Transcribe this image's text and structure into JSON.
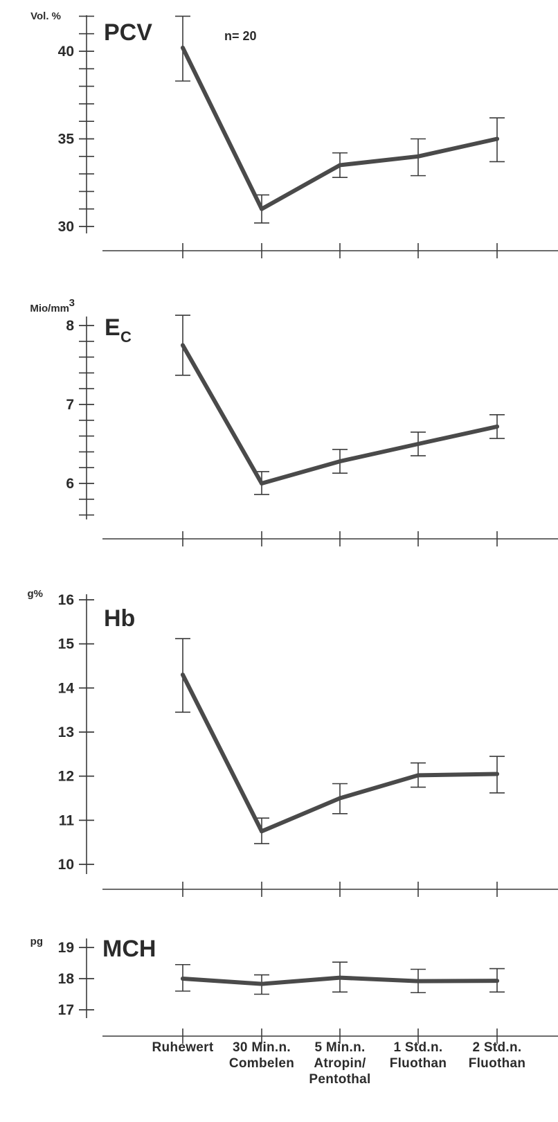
{
  "chart_data": [
    {
      "type": "line",
      "title": "PCV",
      "unit": "Vol. %",
      "annotation": "n= 20",
      "categories": [
        "Ruhewert",
        "30 Min.n. Combelen",
        "5 Min.n. Atropin/ Pentothal",
        "1 Std.n. Fluothan",
        "2 Std.n. Fluothan"
      ],
      "values": [
        40.2,
        31.0,
        33.5,
        34.0,
        35.0
      ],
      "error_low": [
        38.3,
        30.2,
        32.8,
        32.9,
        33.7
      ],
      "error_high": [
        42.0,
        31.8,
        34.2,
        35.0,
        36.2
      ],
      "yticks": [
        30,
        35,
        40
      ],
      "ytick_labels": [
        "30",
        "35",
        "40"
      ],
      "minor_step": 1,
      "ylim": [
        29.5,
        42.5
      ]
    },
    {
      "type": "line",
      "title": "E",
      "title_sub": "C",
      "unit": "Mio/mm",
      "unit_sup": "3",
      "categories": [
        "Ruhewert",
        "30 Min.n. Combelen",
        "5 Min.n. Atropin/ Pentothal",
        "1 Std.n. Fluothan",
        "2 Std.n. Fluothan"
      ],
      "values": [
        7.75,
        6.0,
        6.28,
        6.5,
        6.72
      ],
      "error_low": [
        7.37,
        5.86,
        6.13,
        6.35,
        6.57
      ],
      "error_high": [
        8.13,
        6.15,
        6.43,
        6.65,
        6.87
      ],
      "yticks": [
        6,
        7,
        8
      ],
      "ytick_labels": [
        "6",
        "7",
        "8"
      ],
      "minor_step": 0.2,
      "ylim": [
        5.4,
        8.15
      ]
    },
    {
      "type": "line",
      "title": "Hb",
      "unit": "g%",
      "categories": [
        "Ruhewert",
        "30 Min.n. Combelen",
        "5 Min.n. Atropin/ Pentothal",
        "1 Std.n. Fluothan",
        "2 Std.n. Fluothan"
      ],
      "values": [
        14.3,
        10.75,
        11.5,
        12.02,
        12.05
      ],
      "error_low": [
        13.45,
        10.47,
        11.15,
        11.75,
        11.62
      ],
      "error_high": [
        15.12,
        11.05,
        11.83,
        12.3,
        12.45
      ],
      "yticks": [
        10,
        11,
        12,
        13,
        14,
        15,
        16
      ],
      "ytick_labels": [
        "10",
        "11",
        "12",
        "13",
        "14",
        "15",
        "16"
      ],
      "minor_step": 1,
      "ylim": [
        9.85,
        16.1
      ]
    },
    {
      "type": "line",
      "title": "MCH",
      "unit": "pg",
      "categories": [
        "Ruhewert",
        "30 Min.n. Combelen",
        "5 Min.n. Atropin/ Pentothal",
        "1 Std.n. Fluothan",
        "2 Std.n. Fluothan"
      ],
      "values": [
        18.0,
        17.83,
        18.03,
        17.92,
        17.93
      ],
      "error_low": [
        17.6,
        17.5,
        17.57,
        17.55,
        17.57
      ],
      "error_high": [
        18.45,
        18.12,
        18.53,
        18.3,
        18.32
      ],
      "yticks": [
        17,
        18,
        19
      ],
      "ytick_labels": [
        "17",
        "18",
        "19"
      ],
      "minor_step": 1,
      "ylim": [
        16.9,
        19.1
      ]
    }
  ],
  "x_axis": {
    "category_lines": [
      [
        "Ruhewert"
      ],
      [
        "30 Min.n.",
        "Combelen"
      ],
      [
        "5 Min.n.",
        "Atropin/",
        "Pentothal"
      ],
      [
        "1 Std.n.",
        "Fluothan"
      ],
      [
        "2 Std.n.",
        "Fluothan"
      ]
    ]
  },
  "colors": {
    "line": "#4a4a4a",
    "axis": "#3a3a3a",
    "text": "#2b2b2b",
    "background": "#ffffff"
  }
}
